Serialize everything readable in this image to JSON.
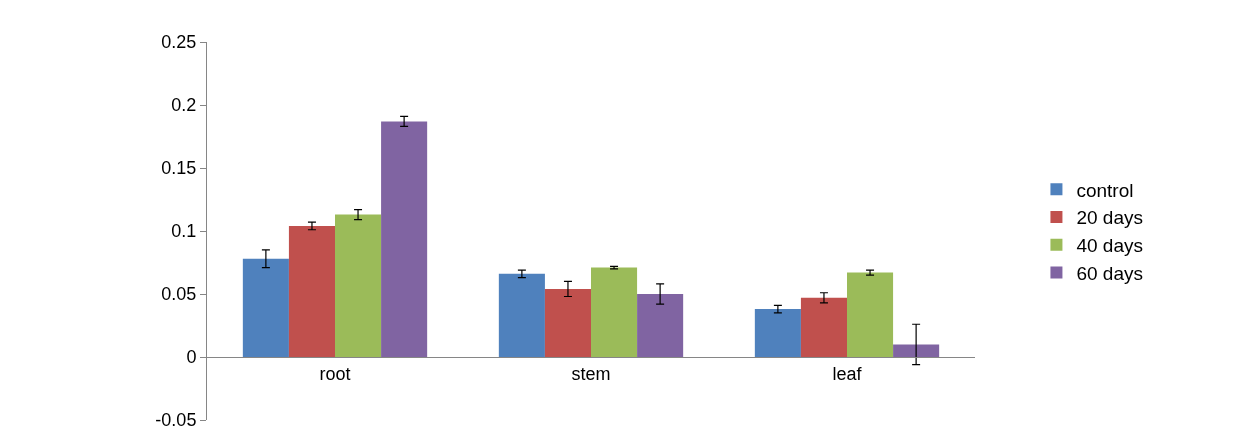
{
  "chart_data": {
    "type": "bar",
    "categories": [
      "root",
      "stem",
      "leaf"
    ],
    "series": [
      {
        "name": "control",
        "color": "#4f81bd",
        "values": [
          0.078,
          0.066,
          0.038
        ],
        "errors": [
          0.007,
          0.003,
          0.003
        ]
      },
      {
        "name": "20 days",
        "color": "#c0504d",
        "values": [
          0.104,
          0.054,
          0.047
        ],
        "errors": [
          0.003,
          0.006,
          0.004
        ]
      },
      {
        "name": "40 days",
        "color": "#9bbb59",
        "values": [
          0.113,
          0.071,
          0.067
        ],
        "errors": [
          0.004,
          0.001,
          0.002
        ]
      },
      {
        "name": "60 days",
        "color": "#8064a2",
        "values": [
          0.187,
          0.05,
          0.01
        ],
        "errors": [
          0.004,
          0.008,
          0.016
        ]
      }
    ],
    "ylim": [
      -0.05,
      0.25
    ],
    "yticks": [
      -0.05,
      0,
      0.05,
      0.1,
      0.15,
      0.2,
      0.25
    ],
    "grid": false,
    "legend": "right"
  }
}
